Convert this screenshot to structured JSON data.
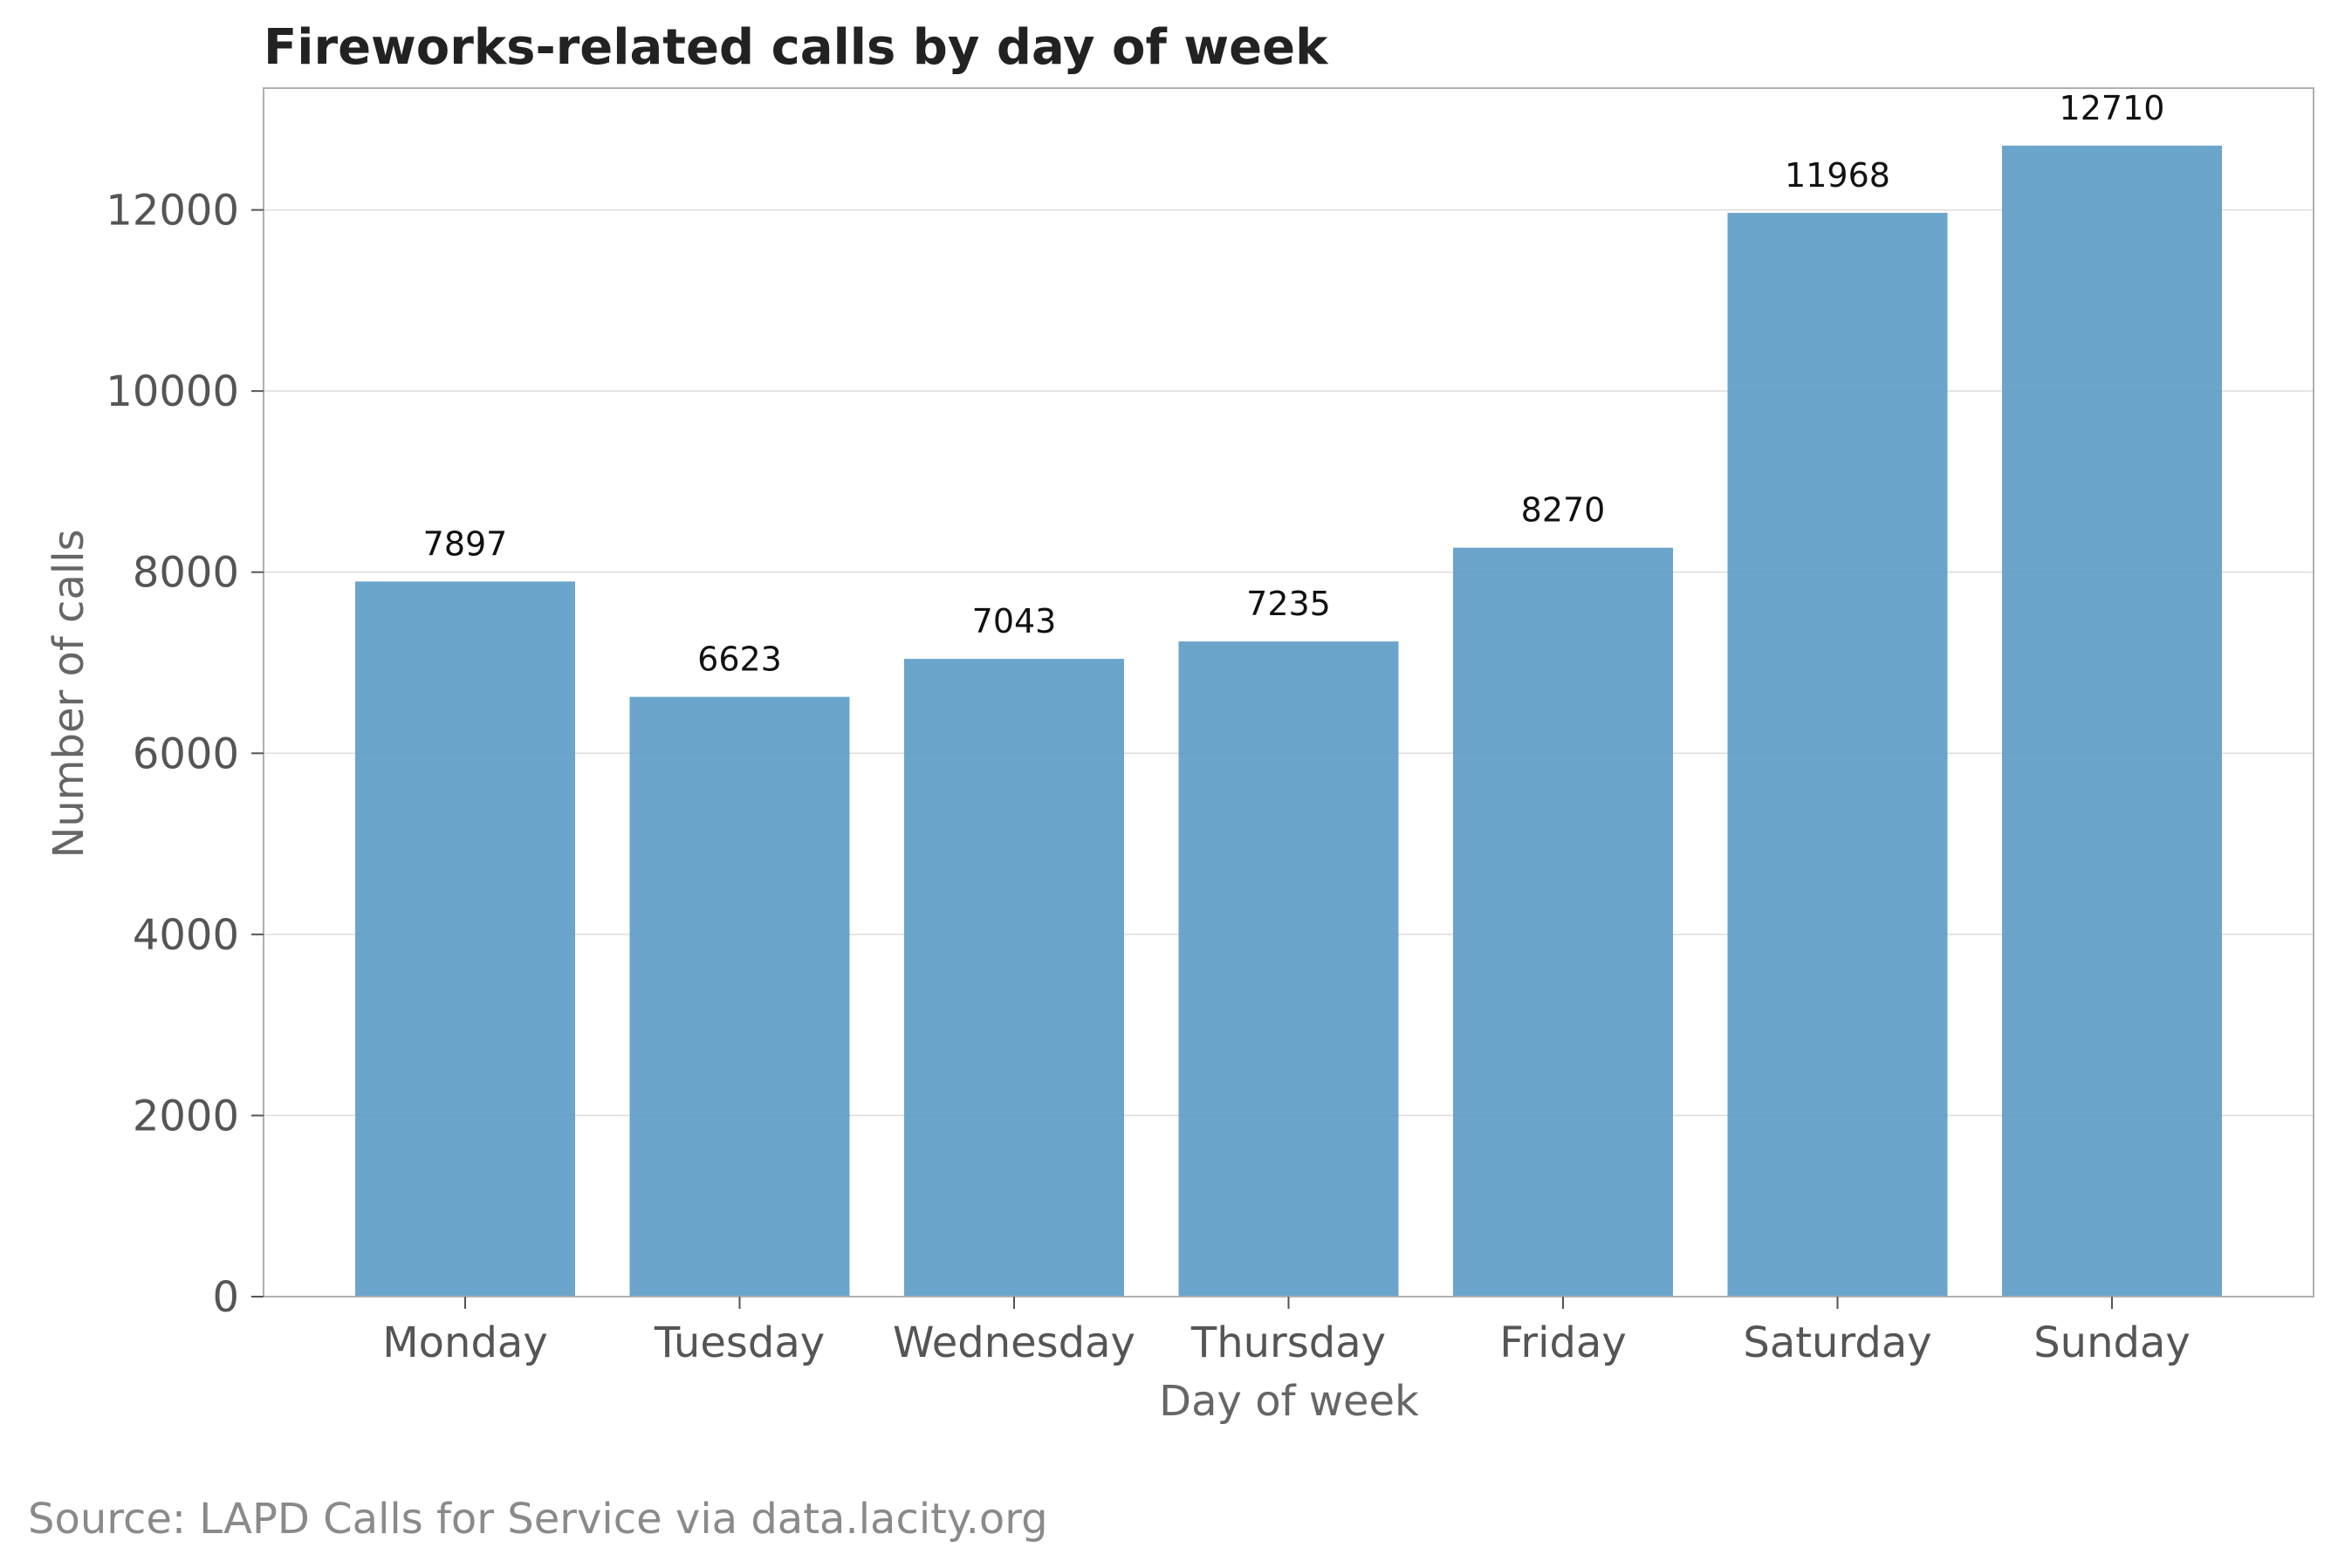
{
  "chart_data": {
    "type": "bar",
    "title": "Fireworks-related calls by day of week",
    "xlabel": "Day of week",
    "ylabel": "Number of calls",
    "categories": [
      "Monday",
      "Tuesday",
      "Wednesday",
      "Thursday",
      "Friday",
      "Saturday",
      "Sunday"
    ],
    "values": [
      7897,
      6623,
      7043,
      7235,
      8270,
      11968,
      12710
    ],
    "data_labels": [
      "7897",
      "6623",
      "7043",
      "7235",
      "8270",
      "11968",
      "12710"
    ],
    "yticks": [
      "0",
      "2000",
      "4000",
      "6000",
      "8000",
      "10000",
      "12000"
    ],
    "ytick_values": [
      0,
      2000,
      4000,
      6000,
      8000,
      10000,
      12000
    ],
    "ylim": [
      0,
      13345
    ],
    "grid": "horizontal",
    "bar_color": "#5b9bc5",
    "source": "Source: LAPD Calls for Service via data.lacity.org"
  }
}
